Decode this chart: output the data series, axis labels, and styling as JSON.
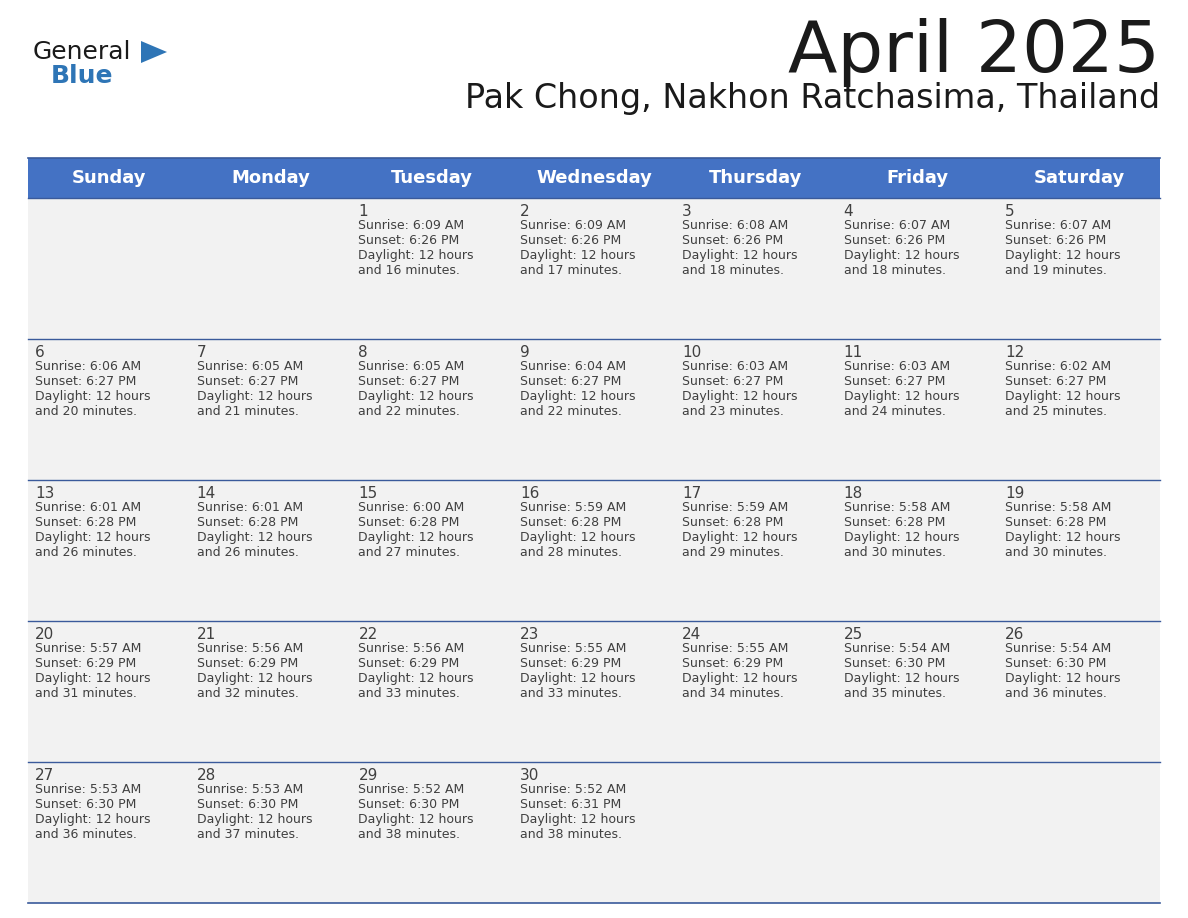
{
  "title": "April 2025",
  "subtitle": "Pak Chong, Nakhon Ratchasima, Thailand",
  "days_of_week": [
    "Sunday",
    "Monday",
    "Tuesday",
    "Wednesday",
    "Thursday",
    "Friday",
    "Saturday"
  ],
  "header_bg": "#4472C4",
  "header_text_color": "#FFFFFF",
  "row_bg": "#F2F2F2",
  "border_color": "#3A5A9B",
  "text_color": "#404040",
  "calendar_data": [
    {
      "day": 1,
      "col": 2,
      "row": 0,
      "sunrise": "6:09 AM",
      "sunset": "6:26 PM",
      "daylight_min": "16"
    },
    {
      "day": 2,
      "col": 3,
      "row": 0,
      "sunrise": "6:09 AM",
      "sunset": "6:26 PM",
      "daylight_min": "17"
    },
    {
      "day": 3,
      "col": 4,
      "row": 0,
      "sunrise": "6:08 AM",
      "sunset": "6:26 PM",
      "daylight_min": "18"
    },
    {
      "day": 4,
      "col": 5,
      "row": 0,
      "sunrise": "6:07 AM",
      "sunset": "6:26 PM",
      "daylight_min": "18"
    },
    {
      "day": 5,
      "col": 6,
      "row": 0,
      "sunrise": "6:07 AM",
      "sunset": "6:26 PM",
      "daylight_min": "19"
    },
    {
      "day": 6,
      "col": 0,
      "row": 1,
      "sunrise": "6:06 AM",
      "sunset": "6:27 PM",
      "daylight_min": "20"
    },
    {
      "day": 7,
      "col": 1,
      "row": 1,
      "sunrise": "6:05 AM",
      "sunset": "6:27 PM",
      "daylight_min": "21"
    },
    {
      "day": 8,
      "col": 2,
      "row": 1,
      "sunrise": "6:05 AM",
      "sunset": "6:27 PM",
      "daylight_min": "22"
    },
    {
      "day": 9,
      "col": 3,
      "row": 1,
      "sunrise": "6:04 AM",
      "sunset": "6:27 PM",
      "daylight_min": "22"
    },
    {
      "day": 10,
      "col": 4,
      "row": 1,
      "sunrise": "6:03 AM",
      "sunset": "6:27 PM",
      "daylight_min": "23"
    },
    {
      "day": 11,
      "col": 5,
      "row": 1,
      "sunrise": "6:03 AM",
      "sunset": "6:27 PM",
      "daylight_min": "24"
    },
    {
      "day": 12,
      "col": 6,
      "row": 1,
      "sunrise": "6:02 AM",
      "sunset": "6:27 PM",
      "daylight_min": "25"
    },
    {
      "day": 13,
      "col": 0,
      "row": 2,
      "sunrise": "6:01 AM",
      "sunset": "6:28 PM",
      "daylight_min": "26"
    },
    {
      "day": 14,
      "col": 1,
      "row": 2,
      "sunrise": "6:01 AM",
      "sunset": "6:28 PM",
      "daylight_min": "26"
    },
    {
      "day": 15,
      "col": 2,
      "row": 2,
      "sunrise": "6:00 AM",
      "sunset": "6:28 PM",
      "daylight_min": "27"
    },
    {
      "day": 16,
      "col": 3,
      "row": 2,
      "sunrise": "5:59 AM",
      "sunset": "6:28 PM",
      "daylight_min": "28"
    },
    {
      "day": 17,
      "col": 4,
      "row": 2,
      "sunrise": "5:59 AM",
      "sunset": "6:28 PM",
      "daylight_min": "29"
    },
    {
      "day": 18,
      "col": 5,
      "row": 2,
      "sunrise": "5:58 AM",
      "sunset": "6:28 PM",
      "daylight_min": "30"
    },
    {
      "day": 19,
      "col": 6,
      "row": 2,
      "sunrise": "5:58 AM",
      "sunset": "6:28 PM",
      "daylight_min": "30"
    },
    {
      "day": 20,
      "col": 0,
      "row": 3,
      "sunrise": "5:57 AM",
      "sunset": "6:29 PM",
      "daylight_min": "31"
    },
    {
      "day": 21,
      "col": 1,
      "row": 3,
      "sunrise": "5:56 AM",
      "sunset": "6:29 PM",
      "daylight_min": "32"
    },
    {
      "day": 22,
      "col": 2,
      "row": 3,
      "sunrise": "5:56 AM",
      "sunset": "6:29 PM",
      "daylight_min": "33"
    },
    {
      "day": 23,
      "col": 3,
      "row": 3,
      "sunrise": "5:55 AM",
      "sunset": "6:29 PM",
      "daylight_min": "33"
    },
    {
      "day": 24,
      "col": 4,
      "row": 3,
      "sunrise": "5:55 AM",
      "sunset": "6:29 PM",
      "daylight_min": "34"
    },
    {
      "day": 25,
      "col": 5,
      "row": 3,
      "sunrise": "5:54 AM",
      "sunset": "6:30 PM",
      "daylight_min": "35"
    },
    {
      "day": 26,
      "col": 6,
      "row": 3,
      "sunrise": "5:54 AM",
      "sunset": "6:30 PM",
      "daylight_min": "36"
    },
    {
      "day": 27,
      "col": 0,
      "row": 4,
      "sunrise": "5:53 AM",
      "sunset": "6:30 PM",
      "daylight_min": "36"
    },
    {
      "day": 28,
      "col": 1,
      "row": 4,
      "sunrise": "5:53 AM",
      "sunset": "6:30 PM",
      "daylight_min": "37"
    },
    {
      "day": 29,
      "col": 2,
      "row": 4,
      "sunrise": "5:52 AM",
      "sunset": "6:30 PM",
      "daylight_min": "38"
    },
    {
      "day": 30,
      "col": 3,
      "row": 4,
      "sunrise": "5:52 AM",
      "sunset": "6:31 PM",
      "daylight_min": "38"
    }
  ],
  "num_rows": 5,
  "num_cols": 7,
  "logo_color_general": "#1a1a1a",
  "logo_color_blue": "#2E75B6",
  "logo_triangle_color": "#2E75B6",
  "title_fontsize": 52,
  "subtitle_fontsize": 24,
  "header_fontsize": 13,
  "day_num_fontsize": 11,
  "cell_text_fontsize": 9
}
